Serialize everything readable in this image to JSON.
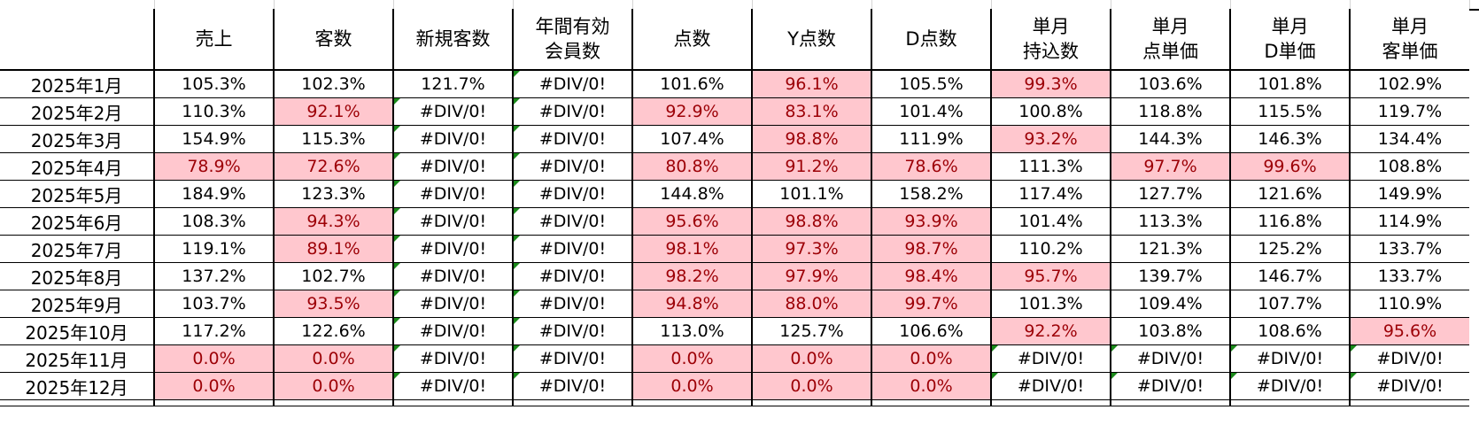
{
  "table": {
    "headers": [
      {
        "lines": [
          ""
        ]
      },
      {
        "lines": [
          "売上"
        ]
      },
      {
        "lines": [
          "客数"
        ]
      },
      {
        "lines": [
          "新規客数"
        ]
      },
      {
        "lines": [
          "年間有効",
          "会員数"
        ]
      },
      {
        "lines": [
          "点数"
        ]
      },
      {
        "lines": [
          "Y点数"
        ]
      },
      {
        "lines": [
          "D点数"
        ]
      },
      {
        "lines": [
          "単月",
          "持込数"
        ]
      },
      {
        "lines": [
          "単月",
          "点単価"
        ]
      },
      {
        "lines": [
          "単月",
          "D単価"
        ]
      },
      {
        "lines": [
          "単月",
          "客単価"
        ]
      }
    ],
    "rows": [
      {
        "label": "2025年1月",
        "cells": [
          "105.3%",
          "102.3%",
          "121.7%",
          "#DIV/0!",
          "101.6%",
          "96.1%",
          "105.5%",
          "99.3%",
          "103.6%",
          "101.8%",
          "102.9%"
        ]
      },
      {
        "label": "2025年2月",
        "cells": [
          "110.3%",
          "92.1%",
          "#DIV/0!",
          "#DIV/0!",
          "92.9%",
          "83.1%",
          "101.4%",
          "100.8%",
          "118.8%",
          "115.5%",
          "119.7%"
        ]
      },
      {
        "label": "2025年3月",
        "cells": [
          "154.9%",
          "115.3%",
          "#DIV/0!",
          "#DIV/0!",
          "107.4%",
          "98.8%",
          "111.9%",
          "93.2%",
          "144.3%",
          "146.3%",
          "134.4%"
        ]
      },
      {
        "label": "2025年4月",
        "cells": [
          "78.9%",
          "72.6%",
          "#DIV/0!",
          "#DIV/0!",
          "80.8%",
          "91.2%",
          "78.6%",
          "111.3%",
          "97.7%",
          "99.6%",
          "108.8%"
        ]
      },
      {
        "label": "2025年5月",
        "cells": [
          "184.9%",
          "123.3%",
          "#DIV/0!",
          "#DIV/0!",
          "144.8%",
          "101.1%",
          "158.2%",
          "117.4%",
          "127.7%",
          "121.6%",
          "149.9%"
        ]
      },
      {
        "label": "2025年6月",
        "cells": [
          "108.3%",
          "94.3%",
          "#DIV/0!",
          "#DIV/0!",
          "95.6%",
          "98.8%",
          "93.9%",
          "101.4%",
          "113.3%",
          "116.8%",
          "114.9%"
        ]
      },
      {
        "label": "2025年7月",
        "cells": [
          "119.1%",
          "89.1%",
          "#DIV/0!",
          "#DIV/0!",
          "98.1%",
          "97.3%",
          "98.7%",
          "110.2%",
          "121.3%",
          "125.2%",
          "133.7%"
        ]
      },
      {
        "label": "2025年8月",
        "cells": [
          "137.2%",
          "102.7%",
          "#DIV/0!",
          "#DIV/0!",
          "98.2%",
          "97.9%",
          "98.4%",
          "95.7%",
          "139.7%",
          "146.7%",
          "133.7%"
        ]
      },
      {
        "label": "2025年9月",
        "cells": [
          "103.7%",
          "93.5%",
          "#DIV/0!",
          "#DIV/0!",
          "94.8%",
          "88.0%",
          "99.7%",
          "101.3%",
          "109.4%",
          "107.7%",
          "110.9%"
        ]
      },
      {
        "label": "2025年10月",
        "cells": [
          "117.2%",
          "122.6%",
          "#DIV/0!",
          "#DIV/0!",
          "113.0%",
          "125.7%",
          "106.6%",
          "92.2%",
          "103.8%",
          "108.6%",
          "95.6%"
        ]
      },
      {
        "label": "2025年11月",
        "cells": [
          "0.0%",
          "0.0%",
          "#DIV/0!",
          "#DIV/0!",
          "0.0%",
          "0.0%",
          "0.0%",
          "#DIV/0!",
          "#DIV/0!",
          "#DIV/0!",
          "#DIV/0!"
        ]
      },
      {
        "label": "2025年12月",
        "cells": [
          "0.0%",
          "0.0%",
          "#DIV/0!",
          "#DIV/0!",
          "0.0%",
          "0.0%",
          "0.0%",
          "#DIV/0!",
          "#DIV/0!",
          "#DIV/0!",
          "#DIV/0!"
        ]
      }
    ]
  },
  "colors": {
    "below_100_fill": "#ffc7ce",
    "below_100_text": "#9c0006",
    "error_indicator": "#1a8a1a",
    "border": "#000000"
  }
}
